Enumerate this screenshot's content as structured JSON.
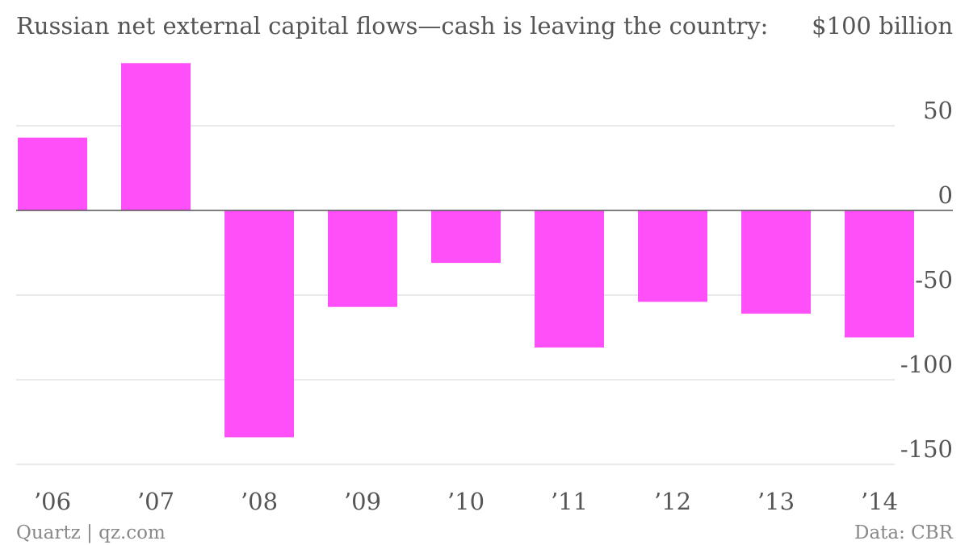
{
  "chart_data": {
    "type": "bar",
    "title": "Russian net external capital flows—cash is leaving the country:",
    "unit_label": "$100 billion",
    "categories": [
      "’06",
      "’07",
      "’08",
      "’09",
      "’10",
      "’11",
      "’12",
      "’13",
      "’14"
    ],
    "series": [
      {
        "values": [
          43,
          87,
          -134,
          -57,
          -31,
          -81,
          -54,
          -61,
          -75
        ]
      }
    ],
    "y_ticks": [
      {
        "value": 50,
        "label": "50"
      },
      {
        "value": 0,
        "label": "0"
      },
      {
        "value": -50,
        "label": "-50"
      },
      {
        "value": -100,
        "label": "-100"
      },
      {
        "value": -150,
        "label": "-150"
      }
    ],
    "ylim": [
      -150,
      100
    ],
    "grid": true,
    "y_axis_position": "right",
    "colors": {
      "bar": "#ff4ff8",
      "grid": "#e2e2e2",
      "zero_line": "#555555"
    }
  },
  "footer": {
    "source_left": "Quartz | qz.com",
    "source_right": "Data: CBR"
  }
}
